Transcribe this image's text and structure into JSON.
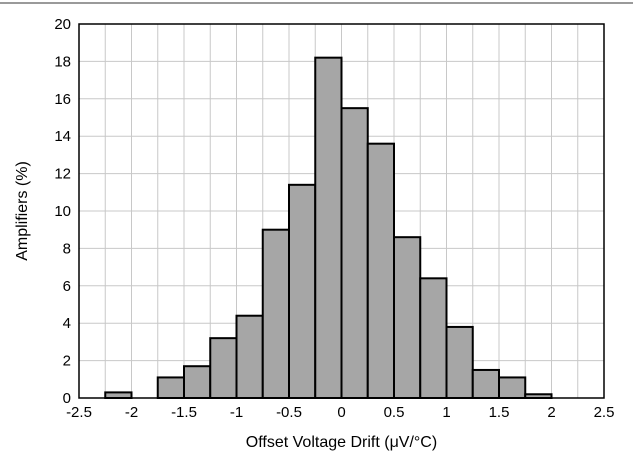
{
  "chart_data": {
    "type": "bar",
    "title": "",
    "xlabel": "Offset Voltage Drift (μV/°C)",
    "ylabel": "Amplifiers (%)",
    "xlim": [
      -2.5,
      2.5
    ],
    "ylim": [
      0,
      20
    ],
    "x_ticks": [
      "-2.5",
      "-2",
      "-1.5",
      "-1",
      "-0.5",
      "0",
      "0.5",
      "1",
      "1.5",
      "2",
      "2.5"
    ],
    "y_ticks": [
      "0",
      "2",
      "4",
      "6",
      "8",
      "10",
      "12",
      "14",
      "16",
      "18",
      "20"
    ],
    "bin_width": 0.25,
    "bin_starts": [
      -2.25,
      -2.0,
      -1.75,
      -1.5,
      -1.25,
      -1.0,
      -0.75,
      -0.5,
      -0.25,
      0.0,
      0.25,
      0.5,
      0.75,
      1.0,
      1.25,
      1.5,
      1.75,
      2.0
    ],
    "values": [
      0.3,
      0.0,
      1.1,
      1.7,
      3.2,
      4.4,
      9.0,
      11.4,
      18.2,
      15.5,
      13.6,
      8.6,
      6.4,
      3.8,
      1.5,
      1.1,
      0.2,
      0.0
    ],
    "grid": true,
    "colors": {
      "bar_fill": "#a6a6a6",
      "bar_edge": "#000000",
      "grid": "#c8c8c8",
      "axis": "#000000",
      "background": "#ffffff"
    }
  }
}
